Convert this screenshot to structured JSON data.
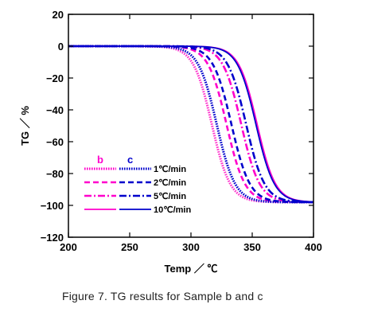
{
  "chart_data": {
    "type": "line",
    "title": "",
    "xlabel": "Temp ／ ℃",
    "ylabel": "TG ／ %",
    "xlim": [
      200,
      400
    ],
    "ylim": [
      -120,
      20
    ],
    "x_ticks": [
      200,
      250,
      300,
      350,
      400
    ],
    "y_ticks": [
      20,
      0,
      -20,
      -40,
      -60,
      -80,
      -100,
      -120
    ],
    "x_tick_labels": [
      "200",
      "250",
      "300",
      "350",
      "400"
    ],
    "y_tick_labels": [
      "20",
      "0",
      "−20",
      "−40",
      "−60",
      "−80",
      "−100",
      "−120"
    ],
    "grid": false,
    "legend": {
      "placement": "bottom-left",
      "group_labels": [
        "b",
        "c"
      ],
      "rate_labels": [
        "1℃/min",
        "2℃/min",
        "5℃/min",
        "10℃/min"
      ]
    },
    "series": [
      {
        "sample": "b",
        "rate": "1℃/min",
        "color": "#ff33cc",
        "style": "dotted",
        "midpoint_temp": 317,
        "final_tg": -98
      },
      {
        "sample": "b",
        "rate": "2℃/min",
        "color": "#ff00cc",
        "style": "dashed",
        "midpoint_temp": 329,
        "final_tg": -98
      },
      {
        "sample": "b",
        "rate": "5℃/min",
        "color": "#ff00cc",
        "style": "dash-dot",
        "midpoint_temp": 341,
        "final_tg": -98
      },
      {
        "sample": "b",
        "rate": "10℃/min",
        "color": "#ff00cc",
        "style": "solid",
        "midpoint_temp": 354,
        "final_tg": -98
      },
      {
        "sample": "c",
        "rate": "1℃/min",
        "color": "#0000cc",
        "style": "dotted",
        "midpoint_temp": 321,
        "final_tg": -98
      },
      {
        "sample": "c",
        "rate": "2℃/min",
        "color": "#0000cc",
        "style": "dashed",
        "midpoint_temp": 333,
        "final_tg": -98
      },
      {
        "sample": "c",
        "rate": "5℃/min",
        "color": "#0000cc",
        "style": "dash-dot",
        "midpoint_temp": 345,
        "final_tg": -98
      },
      {
        "sample": "c",
        "rate": "10℃/min",
        "color": "#0000cc",
        "style": "solid",
        "midpoint_temp": 353,
        "final_tg": -98
      }
    ]
  },
  "caption": "Figure 7.  TG results for Sample b and c",
  "colors": {
    "sample_b": "#ff00cc",
    "sample_c": "#0000cc"
  }
}
